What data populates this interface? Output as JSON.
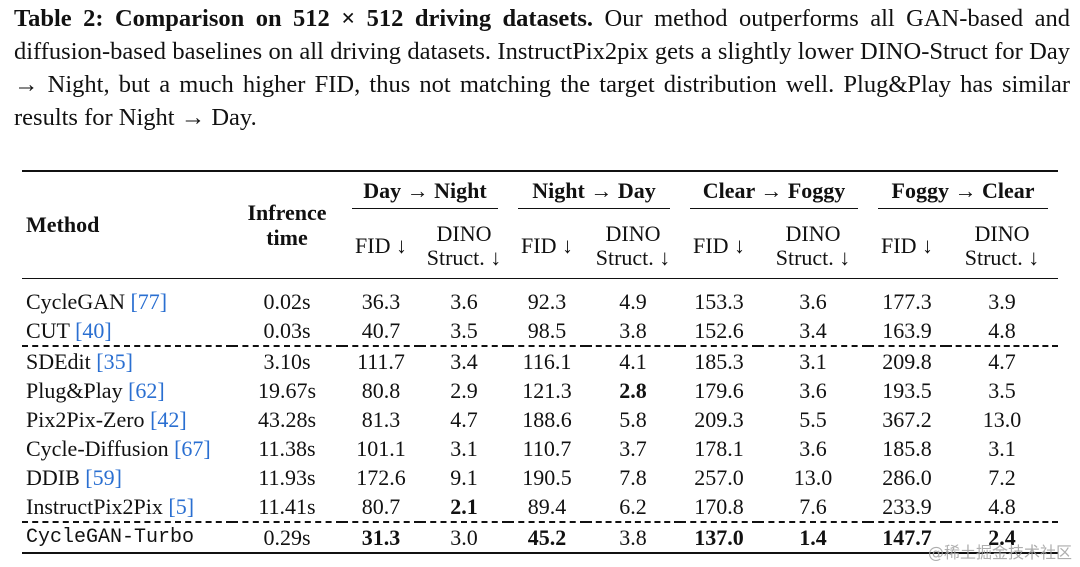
{
  "caption": {
    "label": "Table 2: Comparison on 512 × 512 driving datasets.",
    "text": " Our method outperforms all GAN-based and diffusion-based baselines on all driving datasets. InstructPix2pix gets a slightly lower DINO-Struct for Day → Night, but a much higher FID, thus not matching the target distribution well. Plug&Play has similar results for Night → Day."
  },
  "table": {
    "method_header": "Method",
    "time_header": [
      "Infrence",
      "time"
    ],
    "groups": [
      "Day → Night",
      "Night → Day",
      "Clear → Foggy",
      "Foggy → Clear"
    ],
    "sub": {
      "fid": "FID ↓",
      "dino": [
        "DINO",
        "Struct. ↓"
      ]
    },
    "rows": [
      {
        "method": "CycleGAN",
        "cite": "[77]",
        "time": "0.02s",
        "v": [
          "36.3",
          "3.6",
          "92.3",
          "4.9",
          "153.3",
          "3.6",
          "177.3",
          "3.9"
        ]
      },
      {
        "method": "CUT",
        "cite": "[40]",
        "time": "0.03s",
        "v": [
          "40.7",
          "3.5",
          "98.5",
          "3.8",
          "152.6",
          "3.4",
          "163.9",
          "4.8"
        ]
      },
      {
        "method": "SDEdit",
        "cite": "[35]",
        "time": "3.10s",
        "v": [
          "111.7",
          "3.4",
          "116.1",
          "4.1",
          "185.3",
          "3.1",
          "209.8",
          "4.7"
        ]
      },
      {
        "method": "Plug&Play",
        "cite": "[62]",
        "time": "19.67s",
        "v": [
          "80.8",
          "2.9",
          "121.3",
          "2.8",
          "179.6",
          "3.6",
          "193.5",
          "3.5"
        ]
      },
      {
        "method": "Pix2Pix-Zero",
        "cite": "[42]",
        "time": "43.28s",
        "v": [
          "81.3",
          "4.7",
          "188.6",
          "5.8",
          "209.3",
          "5.5",
          "367.2",
          "13.0"
        ]
      },
      {
        "method": "Cycle-Diffusion",
        "cite": "[67]",
        "time": "11.38s",
        "v": [
          "101.1",
          "3.1",
          "110.7",
          "3.7",
          "178.1",
          "3.6",
          "185.8",
          "3.1"
        ]
      },
      {
        "method": "DDIB",
        "cite": "[59]",
        "time": "11.93s",
        "v": [
          "172.6",
          "9.1",
          "190.5",
          "7.8",
          "257.0",
          "13.0",
          "286.0",
          "7.2"
        ]
      },
      {
        "method": "InstructPix2Pix",
        "cite": "[5]",
        "time": "11.41s",
        "v": [
          "80.7",
          "2.1",
          "89.4",
          "6.2",
          "170.8",
          "7.6",
          "233.9",
          "4.8"
        ]
      },
      {
        "method": "CycleGAN-Turbo",
        "cite": "",
        "time": "0.29s",
        "v": [
          "31.3",
          "3.0",
          "45.2",
          "3.8",
          "137.0",
          "1.4",
          "147.7",
          "2.4"
        ]
      }
    ]
  },
  "watermark": "@稀土掘金技术社区"
}
